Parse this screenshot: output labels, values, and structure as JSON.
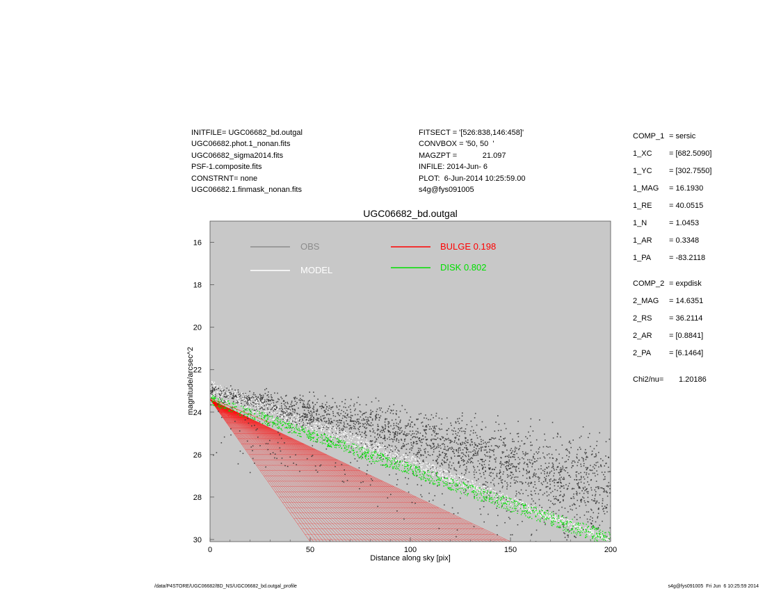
{
  "header": {
    "left_lines": [
      "INITFILE= UGC06682_bd.outgal",
      "UGC06682.phot.1_nonan.fits",
      "UGC06682_sigma2014.fits",
      "PSF-1.composite.fits",
      "CONSTRNT= none",
      "UGC06682.1.finmask_nonan.fits"
    ],
    "mid_lines": [
      "FITSECT = '[526:838,146:458]'",
      "CONVBOX = '50, 50  '",
      "MAGZPT =            21.097",
      "INFILE: 2014-Jun- 6",
      "PLOT:  6-Jun-2014 10:25:59.00",
      "s4g@fys091005"
    ]
  },
  "params": [
    {
      "key": "COMP_1",
      "val": "= sersic"
    },
    {
      "key": "1_XC",
      "val": "= [682.5090]"
    },
    {
      "key": "1_YC",
      "val": "= [302.7550]"
    },
    {
      "key": "1_MAG",
      "val": "= 16.1930"
    },
    {
      "key": "1_RE",
      "val": "= 40.0515"
    },
    {
      "key": "1_N",
      "val": "= 1.0453"
    },
    {
      "key": "1_AR",
      "val": "= 0.3348"
    },
    {
      "key": "1_PA",
      "val": "= -83.2118"
    },
    {
      "key": "COMP_2",
      "val": "= expdisk"
    },
    {
      "key": "2_MAG",
      "val": "= 14.6351"
    },
    {
      "key": "2_RS",
      "val": "= 36.2114"
    },
    {
      "key": "2_AR",
      "val": "= [0.8841]"
    },
    {
      "key": "2_PA",
      "val": "= [6.1464]"
    },
    {
      "key": "Chi2/nu=",
      "val": "1.20186"
    }
  ],
  "footer": {
    "left": "/data/P4STORE/UGC06682/BD_NS/UGC06682_bd.outgal_profile",
    "right": "s4g@fys091005  Fri Jun  6 10:25:59 2014"
  },
  "chart_data": {
    "type": "scatter",
    "title": "UGC06682_bd.outgal",
    "xlabel": "Distance along sky [pix]",
    "ylabel": "magnitude/arcsec^2",
    "xlim": [
      0,
      200
    ],
    "ylim": [
      30.1,
      15.0
    ],
    "y_inverted": true,
    "xticks": [
      0,
      50,
      100,
      150,
      200
    ],
    "yticks": [
      16,
      18,
      20,
      22,
      24,
      26,
      28,
      30
    ],
    "background": "#c8c8c8",
    "legend": [
      {
        "label": "OBS",
        "color": "#8c8c8c"
      },
      {
        "label": "MODEL",
        "color": "#ffffff"
      },
      {
        "label": "BULGE  0.198",
        "color": "#ff0000"
      },
      {
        "label": "DISK  0.802",
        "color": "#00e000"
      }
    ],
    "series": [
      {
        "name": "OBS",
        "color": "#333333",
        "kind": "scatter",
        "note_r": [
          0,
          200
        ],
        "mag_range_at_r0": [
          22.9,
          23.4
        ],
        "mag_range_at_r200": [
          25.0,
          27.5
        ]
      },
      {
        "name": "MODEL",
        "color": "#ffffff",
        "kind": "band",
        "points": [
          [
            0,
            22.9
          ],
          [
            100,
            26.3
          ],
          [
            200,
            30.0
          ]
        ],
        "width_mag": [
          0.4,
          0.15
        ]
      },
      {
        "name": "BULGE  0.198",
        "color": "#ff0000",
        "kind": "fan",
        "apex": [
          0,
          23.4
        ],
        "lower_edge": [
          [
            0,
            23.4
          ],
          [
            50,
            30.1
          ]
        ],
        "upper_edge": [
          [
            0,
            23.4
          ],
          [
            150,
            30.1
          ]
        ]
      },
      {
        "name": "DISK  0.802",
        "color": "#00e000",
        "kind": "band",
        "points": [
          [
            0,
            23.4
          ],
          [
            100,
            26.7
          ],
          [
            200,
            30.0
          ]
        ],
        "width_mag": [
          0.25,
          0.35
        ]
      }
    ]
  }
}
